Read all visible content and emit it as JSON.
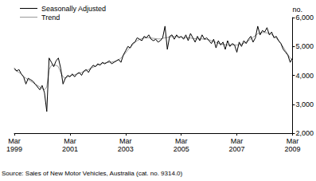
{
  "chart_data": {
    "type": "line",
    "y_label": "no.",
    "annotation": "Source: Sales of New Motor Vehicles, Australia (cat. no. 9314.0)",
    "categories": [
      "Mar 1999",
      null,
      null,
      null,
      null,
      null,
      null,
      null,
      null,
      null,
      null,
      null,
      null,
      null,
      null,
      null,
      null,
      null,
      null,
      null,
      null,
      null,
      null,
      null,
      "Mar 2001",
      null,
      null,
      null,
      null,
      null,
      null,
      null,
      null,
      null,
      null,
      null,
      null,
      null,
      null,
      null,
      null,
      null,
      null,
      null,
      null,
      null,
      null,
      null,
      "Mar 2003",
      null,
      null,
      null,
      null,
      null,
      null,
      null,
      null,
      null,
      null,
      null,
      null,
      null,
      null,
      null,
      null,
      null,
      null,
      null,
      null,
      null,
      null,
      null,
      "Mar 2005",
      null,
      null,
      null,
      null,
      null,
      null,
      null,
      null,
      null,
      null,
      null,
      null,
      null,
      null,
      null,
      null,
      null,
      null,
      null,
      null,
      null,
      null,
      null,
      "Mar 2007",
      null,
      null,
      null,
      null,
      null,
      null,
      null,
      null,
      null,
      null,
      null,
      null,
      null,
      null,
      null,
      null,
      null,
      null,
      null,
      null,
      null,
      null,
      null,
      "Mar 2009"
    ],
    "series": [
      {
        "name": "Seasonally Adjusted",
        "color": "#000000",
        "values": [
          4250,
          4150,
          4200,
          4050,
          3950,
          3700,
          3900,
          3850,
          3800,
          3700,
          3600,
          3500,
          3650,
          3400,
          2750,
          4600,
          4450,
          4300,
          4500,
          4600,
          4250,
          3700,
          3900,
          4000,
          3950,
          4050,
          3950,
          4050,
          4100,
          4000,
          4150,
          4200,
          4100,
          4250,
          4350,
          4300,
          4400,
          4350,
          4450,
          4400,
          4450,
          4500,
          4400,
          4450,
          4500,
          4550,
          4450,
          4700,
          4850,
          5000,
          4950,
          5100,
          5150,
          5300,
          5250,
          5200,
          5350,
          5300,
          5400,
          5250,
          5200,
          5250,
          5150,
          5200,
          5300,
          5700,
          4900,
          5350,
          5400,
          5250,
          5400,
          5300,
          5350,
          5250,
          5400,
          5200,
          5450,
          5300,
          5150,
          5350,
          5200,
          5400,
          5250,
          5300,
          5200,
          5100,
          5250,
          4950,
          5200,
          5050,
          5150,
          4900,
          5200,
          5000,
          5100,
          5050,
          4800,
          5150,
          5000,
          5200,
          5100,
          5250,
          5350,
          5150,
          5300,
          5700,
          5400,
          5550,
          5500,
          5650,
          5400,
          5500,
          5300,
          5350,
          5200,
          5100,
          4900,
          4800,
          4700,
          4450,
          4600
        ]
      },
      {
        "name": "Trend",
        "color": "#999999",
        "values": [
          4200,
          4150,
          4100,
          4050,
          3950,
          3900,
          3850,
          3800,
          3750,
          3700,
          3650,
          3600,
          3550,
          3500,
          3600,
          4200,
          4350,
          4350,
          4350,
          4300,
          4100,
          3950,
          3900,
          3950,
          3980,
          4000,
          4020,
          4050,
          4070,
          4100,
          4130,
          4160,
          4200,
          4240,
          4280,
          4320,
          4360,
          4390,
          4410,
          4430,
          4440,
          4450,
          4460,
          4480,
          4500,
          4540,
          4600,
          4680,
          4780,
          4880,
          4970,
          5060,
          5140,
          5200,
          5240,
          5270,
          5290,
          5300,
          5300,
          5290,
          5280,
          5270,
          5260,
          5260,
          5280,
          5300,
          5310,
          5330,
          5340,
          5340,
          5340,
          5330,
          5320,
          5310,
          5300,
          5300,
          5290,
          5280,
          5270,
          5260,
          5260,
          5260,
          5250,
          5240,
          5230,
          5200,
          5170,
          5140,
          5110,
          5090,
          5070,
          5060,
          5050,
          5050,
          5050,
          5050,
          5050,
          5060,
          5080,
          5110,
          5150,
          5200,
          5260,
          5320,
          5380,
          5440,
          5470,
          5480,
          5480,
          5470,
          5450,
          5410,
          5350,
          5280,
          5200,
          5100,
          4980,
          4850,
          4720,
          4600,
          4520
        ]
      }
    ],
    "ylim": [
      2000,
      6000
    ],
    "yticks": [
      2000,
      3000,
      4000,
      5000,
      6000
    ],
    "grid": false,
    "legend": "top-left"
  }
}
